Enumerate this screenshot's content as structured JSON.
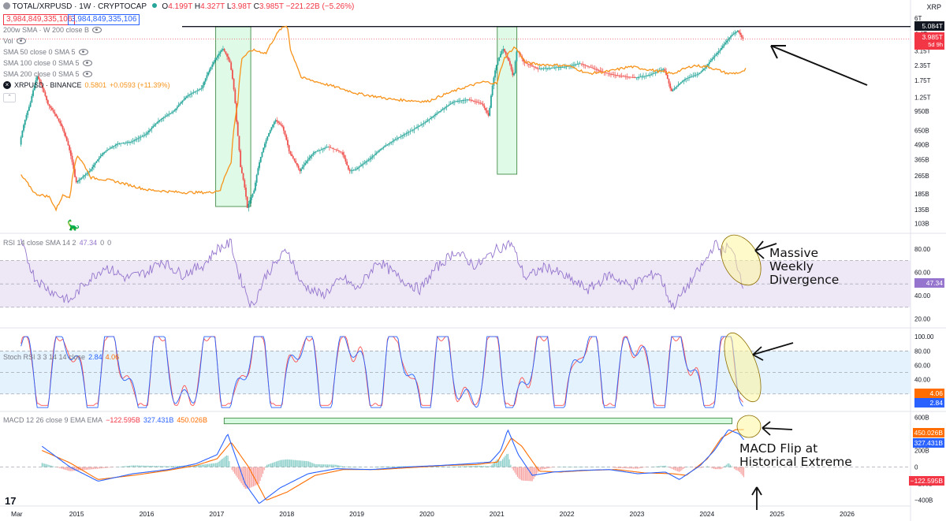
{
  "header": {
    "symbol": "TOTAL/XRPUSD · 1W · CRYPTOCAP",
    "ohlc": {
      "o": "O",
      "o_val": "4.199T",
      "h": "H",
      "h_val": "4.327T",
      "l": "L",
      "l_val": "3.98T",
      "c": "C",
      "c_val": "3.985T",
      "chg": "−221.22B (−5.26%)"
    },
    "bid": "3,984,849,335,106",
    "ask": "3,984,849,335,106"
  },
  "indicators": [
    "200w SMA · W 200 close B",
    "Vol",
    "SMA 50 close 0 SMA 5",
    "SMA 100 close 0 SMA 5",
    "SMA 200 close 0 SMA 5"
  ],
  "overlay": {
    "name": "XRPUSD · BINANCE",
    "value": "0.5801",
    "change": "+0.0593 (+11.39%)"
  },
  "right_header": "XRP",
  "colors": {
    "bull": "#26a69a",
    "bear": "#ef5350",
    "xrp": "#f7931a",
    "rsi": "#9575cd",
    "rsi_band": "#ede7f6",
    "stoch_band": "#e3f2fd",
    "stoch_k": "#2962ff",
    "stoch_d": "#ff5252",
    "macd": "#2962ff",
    "signal": "#ff6d00",
    "highlight": "#b9f6ca",
    "circle": "#fff59d"
  },
  "annotations": {
    "rsi": "Massive\nWeekly\nDivergence",
    "macd": "MACD Flip at\nHistorical Extreme"
  },
  "chart_data": [
    {
      "type": "line",
      "title": "TOTAL/XRPUSD · 1W · CRYPTOCAP",
      "scale": "log",
      "y_ticks": [
        "6T",
        "4.4T",
        "3.15T",
        "2.35T",
        "1.75T",
        "1.25T",
        "950B",
        "650B",
        "490B",
        "365B",
        "265B",
        "185B",
        "135B",
        "103B"
      ],
      "y_tick_values": [
        6000,
        4400,
        3150,
        2350,
        1750,
        1250,
        950,
        650,
        490,
        365,
        265,
        185,
        135,
        103
      ],
      "x_ticks": [
        "Mar",
        "2015",
        "2016",
        "2017",
        "2018",
        "2019",
        "2020",
        "2021",
        "2022",
        "2023",
        "2024",
        "2025",
        "2026"
      ],
      "x_tick_values": [
        2014.17,
        2015,
        2016,
        2017,
        2018,
        2019,
        2020,
        2021,
        2022,
        2023,
        2024,
        2025,
        2026
      ],
      "xlim": [
        2013.9,
        2026.9
      ],
      "series": [
        {
          "name": "TOTAL/XRPUSD",
          "x": [
            2014.2,
            2014.35,
            2014.45,
            2014.6,
            2014.8,
            2015.0,
            2015.2,
            2015.4,
            2015.6,
            2015.8,
            2016.0,
            2016.2,
            2016.4,
            2016.6,
            2016.8,
            2016.95,
            2017.1,
            2017.2,
            2017.3,
            2017.35,
            2017.45,
            2017.55,
            2017.7,
            2017.85,
            2017.95,
            2018.05,
            2018.2,
            2018.4,
            2018.6,
            2018.8,
            2018.9,
            2019.0,
            2019.2,
            2019.4,
            2019.6,
            2019.8,
            2020.0,
            2020.2,
            2020.4,
            2020.6,
            2020.8,
            2020.9,
            2021.0,
            2021.1,
            2021.2,
            2021.25,
            2021.3,
            2021.4,
            2021.6,
            2021.8,
            2022.0,
            2022.2,
            2022.4,
            2022.6,
            2022.8,
            2023.0,
            2023.2,
            2023.4,
            2023.5,
            2023.7,
            2023.9,
            2024.0,
            2024.2,
            2024.35,
            2024.45,
            2024.52
          ],
          "y": [
            490,
            1100,
            1900,
            1100,
            700,
            230,
            290,
            420,
            500,
            520,
            600,
            800,
            950,
            1300,
            1500,
            2400,
            3300,
            2500,
            700,
            320,
            140,
            200,
            500,
            800,
            700,
            420,
            290,
            420,
            470,
            420,
            290,
            300,
            370,
            470,
            560,
            650,
            770,
            950,
            1150,
            1200,
            1100,
            850,
            2300,
            3300,
            2400,
            1800,
            3200,
            2500,
            2200,
            2250,
            2300,
            2450,
            2200,
            2000,
            1900,
            1850,
            1950,
            2200,
            1400,
            1800,
            2000,
            2300,
            3200,
            4200,
            4700,
            3985
          ]
        },
        {
          "name": "XRPUSD",
          "x": [
            2014.2,
            2014.4,
            2014.6,
            2014.7,
            2014.8,
            2014.9,
            2015.0,
            2015.2,
            2015.5,
            2016.0,
            2016.5,
            2016.9,
            2017.05,
            2017.2,
            2017.3,
            2017.35,
            2017.5,
            2017.7,
            2017.9,
            2018.0,
            2018.05,
            2018.2,
            2018.5,
            2019.0,
            2019.5,
            2020.0,
            2020.5,
            2020.8,
            2021.0,
            2021.1,
            2021.25,
            2021.4,
            2021.6,
            2022.0,
            2022.3,
            2022.6,
            2022.9,
            2023.2,
            2023.5,
            2023.8,
            2024.0,
            2024.3,
            2024.5,
            2024.55
          ],
          "y": [
            265,
            185,
            175,
            135,
            180,
            175,
            400,
            255,
            240,
            200,
            190,
            190,
            200,
            350,
            1150,
            2700,
            3200,
            3000,
            4800,
            5200,
            3100,
            1850,
            1650,
            1350,
            1200,
            1150,
            1500,
            1700,
            1650,
            2700,
            3400,
            2500,
            2400,
            2350,
            2000,
            2100,
            2300,
            2150,
            2000,
            2350,
            2300,
            2000,
            2050,
            2200
          ]
        }
      ],
      "annotations": [
        "5.084T",
        "3.985T",
        "5d 9h",
        "XRP"
      ]
    },
    {
      "type": "line",
      "title": "RSI 14 close SMA 14 2",
      "value": "47.34",
      "extra": [
        "0",
        "0"
      ],
      "ylim": [
        15,
        92
      ],
      "y_ticks": [
        80,
        60,
        40,
        20
      ],
      "series": [
        {
          "name": "RSI",
          "x": [
            2014.2,
            2014.4,
            2014.6,
            2014.9,
            2015.1,
            2015.4,
            2015.7,
            2016.0,
            2016.2,
            2016.5,
            2016.8,
            2017.0,
            2017.2,
            2017.3,
            2017.5,
            2017.7,
            2017.9,
            2018.0,
            2018.2,
            2018.5,
            2018.8,
            2019.0,
            2019.3,
            2019.6,
            2019.9,
            2020.1,
            2020.4,
            2020.7,
            2021.0,
            2021.2,
            2021.4,
            2021.7,
            2022.0,
            2022.3,
            2022.6,
            2022.9,
            2023.1,
            2023.3,
            2023.5,
            2023.8,
            2024.0,
            2024.1,
            2024.2,
            2024.3,
            2024.4,
            2024.52
          ],
          "y": [
            85,
            55,
            45,
            35,
            50,
            65,
            55,
            60,
            70,
            58,
            66,
            80,
            85,
            60,
            30,
            58,
            72,
            80,
            50,
            40,
            55,
            45,
            70,
            55,
            45,
            62,
            78,
            65,
            80,
            85,
            55,
            65,
            55,
            45,
            58,
            48,
            55,
            60,
            30,
            55,
            72,
            85,
            78,
            82,
            72,
            47.34
          ]
        }
      ],
      "bands": [
        30,
        70
      ]
    },
    {
      "type": "line",
      "title": "Stoch RSI 3 3 14 14 close",
      "values": [
        "2.84",
        "4.06"
      ],
      "ylim": [
        0,
        110
      ],
      "y_ticks": [
        100,
        80,
        60,
        40,
        20
      ],
      "bands": [
        20,
        80
      ],
      "series": [
        {
          "name": "%K",
          "x": [
            2014.2,
            2024.52
          ],
          "y": [
            50,
            2.84
          ]
        },
        {
          "name": "%D",
          "x": [
            2014.2,
            2024.52
          ],
          "y": [
            50,
            4.06
          ]
        }
      ]
    },
    {
      "type": "line",
      "title": "MACD 12 26 close 9 EMA EMA",
      "values": [
        "−122.595B",
        "327.431B",
        "450.026B"
      ],
      "ylim": [
        -450,
        650
      ],
      "y_ticks": [
        "600B",
        "400B",
        "200B",
        "0",
        "−200B",
        "−400B"
      ],
      "y_tick_values": [
        600,
        400,
        200,
        0,
        -200,
        -400
      ],
      "series": [
        {
          "name": "MACD",
          "x": [
            2014.5,
            2014.9,
            2015.3,
            2015.8,
            2016.3,
            2016.7,
            2017.0,
            2017.15,
            2017.4,
            2017.6,
            2017.9,
            2018.3,
            2018.7,
            2019.2,
            2019.7,
            2020.2,
            2020.6,
            2020.9,
            2021.05,
            2021.15,
            2021.3,
            2021.5,
            2021.8,
            2022.2,
            2022.6,
            2023.0,
            2023.4,
            2023.6,
            2023.9,
            2024.1,
            2024.3,
            2024.45,
            2024.52
          ],
          "y": [
            250,
            0,
            -170,
            -80,
            -30,
            40,
            150,
            400,
            -200,
            -440,
            -250,
            -80,
            -20,
            -30,
            0,
            20,
            40,
            60,
            200,
            450,
            150,
            -100,
            -60,
            -40,
            -30,
            -80,
            -60,
            -150,
            20,
            200,
            450,
            400,
            327.431
          ]
        },
        {
          "name": "Signal",
          "x": [
            2014.5,
            2014.9,
            2015.3,
            2015.8,
            2016.3,
            2016.7,
            2017.0,
            2017.2,
            2017.45,
            2017.7,
            2018.0,
            2018.4,
            2018.8,
            2019.3,
            2019.8,
            2020.3,
            2020.7,
            2021.0,
            2021.2,
            2021.35,
            2021.6,
            2021.9,
            2022.3,
            2022.7,
            2023.1,
            2023.5,
            2023.7,
            2024.0,
            2024.2,
            2024.4,
            2024.52
          ],
          "y": [
            200,
            50,
            -150,
            -100,
            -40,
            20,
            100,
            300,
            0,
            -400,
            -300,
            -100,
            -30,
            -30,
            -5,
            20,
            30,
            60,
            350,
            250,
            -50,
            -60,
            -40,
            -30,
            -70,
            -80,
            -100,
            100,
            350,
            450,
            450.026
          ]
        }
      ]
    }
  ]
}
